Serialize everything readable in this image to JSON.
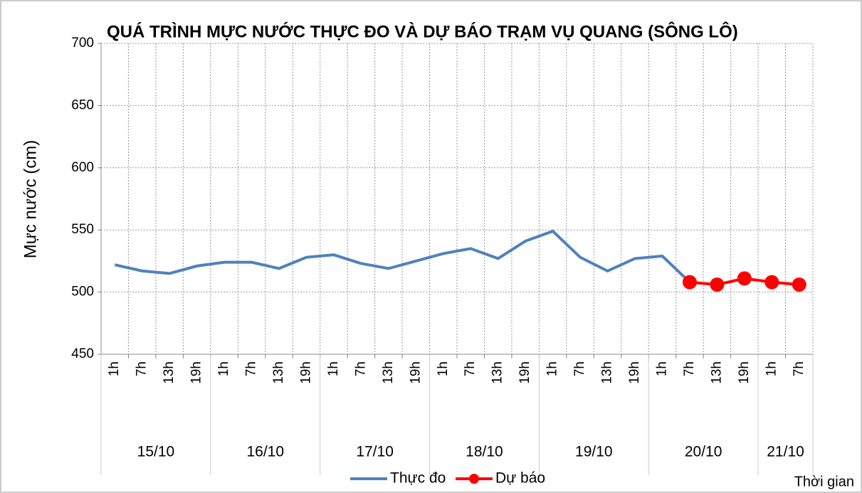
{
  "chart_data": {
    "type": "line",
    "title": "QUÁ TRÌNH MỰC NƯỚC THỰC ĐO VÀ DỰ BÁO TRẠM VỤ QUANG (SÔNG LÔ)",
    "y_label": "Mực nước (cm)",
    "x_label": "Thời gian",
    "categories": [
      "1h",
      "7h",
      "13h",
      "19h",
      "1h",
      "7h",
      "13h",
      "19h",
      "1h",
      "7h",
      "13h",
      "19h",
      "1h",
      "7h",
      "13h",
      "19h",
      "1h",
      "7h",
      "13h",
      "19h",
      "1h",
      "7h",
      "13h",
      "19h",
      "1h",
      "7h"
    ],
    "category_groups": [
      {
        "label": "15/10",
        "size": 4
      },
      {
        "label": "16/10",
        "size": 4
      },
      {
        "label": "17/10",
        "size": 4
      },
      {
        "label": "18/10",
        "size": 4
      },
      {
        "label": "19/10",
        "size": 4
      },
      {
        "label": "20/10",
        "size": 4
      },
      {
        "label": "21/10",
        "size": 2
      }
    ],
    "series": [
      {
        "name": "Thực đo",
        "color": "#4f81bd",
        "marker": false,
        "values": [
          522,
          517,
          515,
          521,
          524,
          524,
          519,
          528,
          530,
          523,
          519,
          525,
          531,
          535,
          527,
          541,
          549,
          528,
          517,
          527,
          529,
          508,
          null,
          null,
          null,
          null
        ]
      },
      {
        "name": "Dự báo",
        "color": "#ff0000",
        "marker": true,
        "values": [
          null,
          null,
          null,
          null,
          null,
          null,
          null,
          null,
          null,
          null,
          null,
          null,
          null,
          null,
          null,
          null,
          null,
          null,
          null,
          null,
          null,
          508,
          506,
          511,
          508,
          506
        ]
      }
    ],
    "ylim": [
      450,
      700
    ],
    "yticks": [
      450,
      500,
      550,
      600,
      650,
      700
    ],
    "grid": true,
    "legend": "bottom"
  }
}
